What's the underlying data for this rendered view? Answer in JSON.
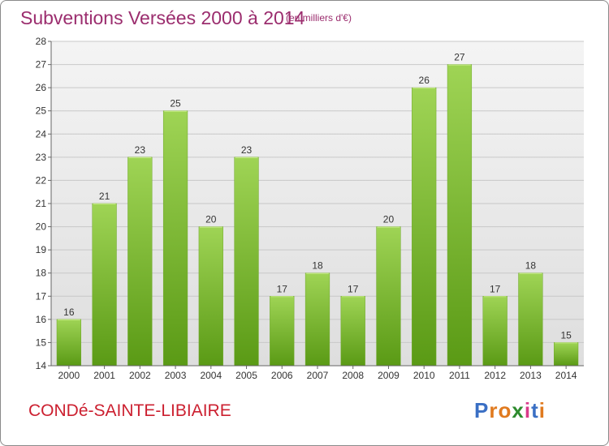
{
  "title": "Subventions Versées 2000 à 2014",
  "unit_note": "(en milliers d'€)",
  "location": "CONDé-SAINTE-LIBIAIRE",
  "brand": {
    "text": "Proxiti",
    "letters": [
      "P",
      "r",
      "o",
      "x",
      "i",
      "t",
      "i"
    ],
    "letter_colors": [
      "#3a6fc4",
      "#e07a1f",
      "#e07a1f",
      "#2e8b2e",
      "#d93a8a",
      "#3a6fc4",
      "#e07a1f"
    ]
  },
  "colors": {
    "title": "#9b2d6e",
    "location": "#cc2030",
    "bar_top": "#9fd455",
    "bar_bottom": "#5a9a15",
    "plot_bg_top": "#f4f4f4",
    "plot_bg_bottom": "#dedede",
    "grid": "#c8c8c8"
  },
  "chart_data": {
    "type": "bar",
    "categories": [
      "2000",
      "2001",
      "2002",
      "2003",
      "2004",
      "2005",
      "2006",
      "2007",
      "2008",
      "2009",
      "2010",
      "2011",
      "2012",
      "2013",
      "2014"
    ],
    "values": [
      16,
      21,
      23,
      25,
      20,
      23,
      17,
      18,
      17,
      20,
      26,
      27,
      17,
      18,
      15
    ],
    "ylim": [
      14,
      28
    ],
    "yticks": [
      "14",
      "15",
      "16",
      "17",
      "18",
      "19",
      "20",
      "21",
      "22",
      "23",
      "24",
      "25",
      "26",
      "27",
      "28"
    ],
    "grid": true,
    "data_labels": true
  }
}
